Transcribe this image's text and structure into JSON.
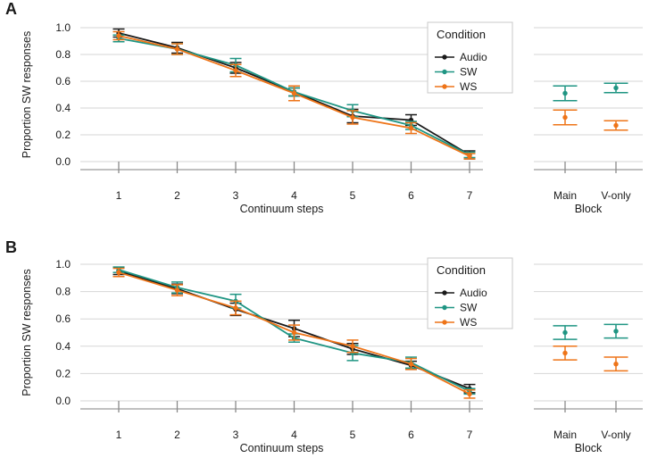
{
  "style": {
    "background": "#ffffff",
    "text_color": "#1a1a1a",
    "grid_color": "#d6d6d6",
    "axis_color": "#9b9b9b",
    "tick_color": "#8a8a8a",
    "legend_border_color": "#c8c8c8",
    "audio_color": "#1a1a1a",
    "sw_color": "#1f9583",
    "ws_color": "#ee7418"
  },
  "chart_data": [
    {
      "panel": "A",
      "type": "line",
      "ylabel": "Proportion SW responses",
      "ylim": [
        0,
        1
      ],
      "y_ticks": [
        "0.0",
        "0.2",
        "0.4",
        "0.6",
        "0.8",
        "1.0"
      ],
      "grid": true,
      "legend": {
        "title": "Condition",
        "entries": [
          "Audio",
          "SW",
          "WS"
        ],
        "position": "top-right"
      },
      "subplots": [
        {
          "name": "continuum",
          "type": "line",
          "xlabel": "Continuum steps",
          "x_ticks": [
            "1",
            "2",
            "3",
            "4",
            "5",
            "6",
            "7"
          ],
          "series": [
            {
              "name": "Audio",
              "color": "#1a1a1a",
              "values": [
                0.96,
                0.85,
                0.7,
                0.52,
                0.34,
                0.31,
                0.05
              ],
              "errors": [
                0.03,
                0.04,
                0.04,
                0.03,
                0.05,
                0.04,
                0.03
              ]
            },
            {
              "name": "SW",
              "color": "#1f9583",
              "values": [
                0.92,
                0.84,
                0.72,
                0.52,
                0.38,
                0.27,
                0.05
              ],
              "errors": [
                0.025,
                0.04,
                0.05,
                0.03,
                0.045,
                0.03,
                0.02
              ]
            },
            {
              "name": "WS",
              "color": "#ee7418",
              "values": [
                0.94,
                0.84,
                0.68,
                0.51,
                0.33,
                0.25,
                0.04
              ],
              "errors": [
                0.03,
                0.04,
                0.045,
                0.055,
                0.05,
                0.04,
                0.02
              ]
            }
          ]
        },
        {
          "name": "block",
          "type": "scatter",
          "xlabel": "Block",
          "x_ticks": [
            "Main",
            "V-only"
          ],
          "series": [
            {
              "name": "SW",
              "color": "#1f9583",
              "values": [
                0.51,
                0.55
              ],
              "errors": [
                0.055,
                0.035
              ]
            },
            {
              "name": "WS",
              "color": "#ee7418",
              "values": [
                0.33,
                0.27
              ],
              "errors": [
                0.055,
                0.035
              ]
            }
          ]
        }
      ]
    },
    {
      "panel": "B",
      "type": "line",
      "ylabel": "Proportion SW responses",
      "ylim": [
        0,
        1
      ],
      "y_ticks": [
        "0.0",
        "0.2",
        "0.4",
        "0.6",
        "0.8",
        "1.0"
      ],
      "grid": true,
      "legend": {
        "title": "Condition",
        "entries": [
          "Audio",
          "SW",
          "WS"
        ],
        "position": "top-right"
      },
      "subplots": [
        {
          "name": "continuum",
          "type": "line",
          "xlabel": "Continuum steps",
          "x_ticks": [
            "1",
            "2",
            "3",
            "4",
            "5",
            "6",
            "7"
          ],
          "series": [
            {
              "name": "Audio",
              "color": "#1a1a1a",
              "values": [
                0.95,
                0.82,
                0.67,
                0.53,
                0.38,
                0.26,
                0.09
              ],
              "errors": [
                0.025,
                0.035,
                0.045,
                0.06,
                0.04,
                0.03,
                0.03
              ]
            },
            {
              "name": "SW",
              "color": "#1f9583",
              "values": [
                0.96,
                0.83,
                0.73,
                0.46,
                0.35,
                0.28,
                0.07
              ],
              "errors": [
                0.02,
                0.04,
                0.05,
                0.03,
                0.055,
                0.04,
                0.02
              ]
            },
            {
              "name": "WS",
              "color": "#ee7418",
              "values": [
                0.94,
                0.81,
                0.68,
                0.5,
                0.4,
                0.27,
                0.05
              ],
              "errors": [
                0.03,
                0.04,
                0.05,
                0.055,
                0.045,
                0.04,
                0.03
              ]
            }
          ]
        },
        {
          "name": "block",
          "type": "scatter",
          "xlabel": "Block",
          "x_ticks": [
            "Main",
            "V-only"
          ],
          "series": [
            {
              "name": "SW",
              "color": "#1f9583",
              "values": [
                0.5,
                0.51
              ],
              "errors": [
                0.05,
                0.05
              ]
            },
            {
              "name": "WS",
              "color": "#ee7418",
              "values": [
                0.35,
                0.27
              ],
              "errors": [
                0.05,
                0.05
              ]
            }
          ]
        }
      ]
    }
  ]
}
